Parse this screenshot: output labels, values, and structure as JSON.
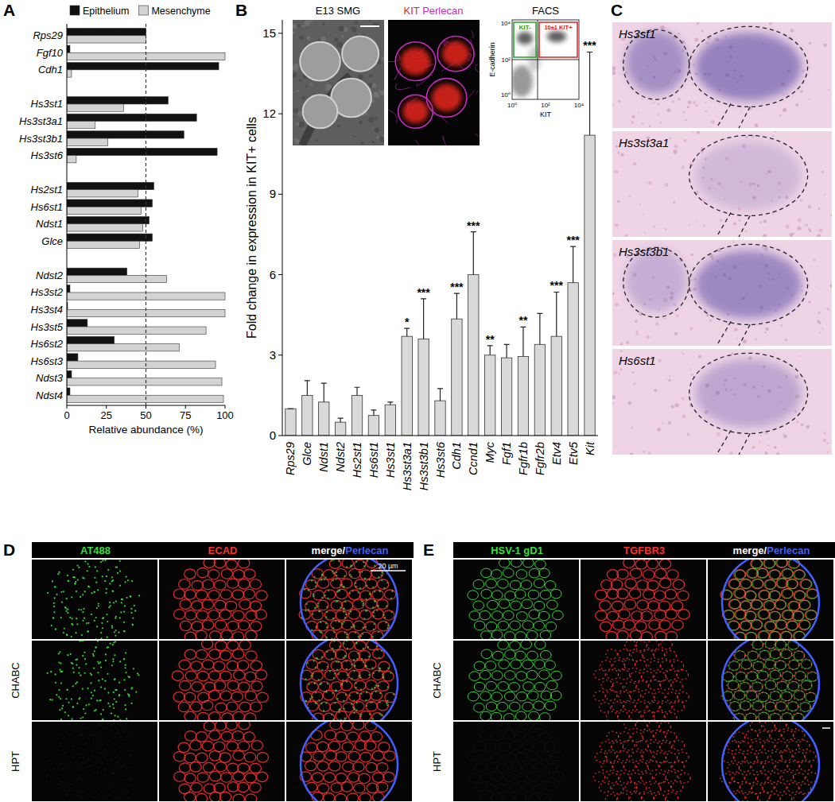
{
  "chart_data": [
    {
      "type": "bar",
      "orientation": "horizontal",
      "categories": [
        "Rps29",
        "Fgf10",
        "Cdh1",
        null,
        "Hs3st1",
        "Hs3st3a1",
        "Hs3st3b1",
        "Hs3st6",
        null,
        "Hs2st1",
        "Hs6st1",
        "Ndst1",
        "Glce",
        null,
        "Ndst2",
        "Hs3st2",
        "Hs3st4",
        "Hs3st5",
        "Hs6st2",
        "Hs6st3",
        "Ndst3",
        "Ndst4"
      ],
      "series": [
        {
          "name": "Epithelium",
          "color": "#111111",
          "values": [
            50,
            2,
            96,
            null,
            64,
            82,
            74,
            95,
            null,
            55,
            54,
            52,
            54,
            null,
            38,
            2,
            0.5,
            13,
            30,
            7,
            3,
            2
          ]
        },
        {
          "name": "Mesenchyme",
          "color": "#d3d3d3",
          "values": [
            50,
            100,
            3,
            null,
            36,
            18,
            26,
            6,
            null,
            45,
            47,
            48,
            46,
            null,
            63,
            100,
            100,
            88,
            71,
            94,
            98,
            99
          ]
        }
      ],
      "xlabel": "Relative abundance (%)",
      "xlim": [
        0,
        100
      ],
      "xticks": [
        0,
        25,
        50,
        75,
        100
      ],
      "legend": "top",
      "ref_line": 50
    },
    {
      "type": "bar",
      "categories": [
        "Rps29",
        "Glce",
        "Ndst1",
        "Ndst2",
        "Hs2st1",
        "Hs6st1",
        "Hs3st1",
        "Hs3st3a1",
        "Hs3st3b1",
        "Hs3st6",
        "Cdh1",
        "Ccnd1",
        "Myc",
        "Fgf1",
        "Fgfr1b",
        "Fgfr2b",
        "Etv4",
        "Etv5",
        "Kit"
      ],
      "values": [
        1,
        1.5,
        1.25,
        0.5,
        1.5,
        0.75,
        1.15,
        3.7,
        3.6,
        1.3,
        4.35,
        6,
        3,
        2.9,
        2.95,
        3.4,
        3.7,
        5.7,
        11.2
      ],
      "errors": [
        0,
        0.55,
        0.7,
        0.15,
        0.3,
        0.2,
        0.1,
        0.3,
        1.5,
        0.45,
        0.95,
        1.6,
        0.35,
        0.5,
        1.1,
        1.15,
        1.65,
        1.35,
        3.1
      ],
      "significance": [
        null,
        null,
        null,
        null,
        null,
        null,
        null,
        "*",
        "***",
        null,
        "***",
        "***",
        "**",
        null,
        "**",
        null,
        "***",
        "***",
        "***"
      ],
      "color": "#d9d9d9",
      "ylabel": "Fold change in expression in KIT+ cells",
      "ylim": [
        0,
        15.5
      ],
      "yticks": [
        0,
        3,
        6,
        9,
        12,
        15
      ]
    }
  ],
  "figure": {
    "panel_letters": [
      "A",
      "B",
      "C",
      "D",
      "E"
    ],
    "b_insets": {
      "smg_title": "E13 SMG",
      "stain_titles": [
        {
          "text": "KIT",
          "color": "#e8261f"
        },
        {
          "text": " Perlecan",
          "color": "#c42bbf"
        }
      ],
      "facs_title": "FACS",
      "facs_ylabel": "E-cadherin",
      "facs_xlabel": "KIT",
      "facs_ticks": [
        "10⁰",
        "10²",
        "10⁴"
      ],
      "facs_gates": [
        {
          "text": "KIT-",
          "color": "#22a022"
        },
        {
          "text": "10±1 KIT+",
          "color": "#dd2222"
        }
      ]
    },
    "c_panels": [
      "Hs3st1",
      "Hs3st3a1",
      "Hs3st3b1",
      "Hs6st1"
    ],
    "d_panel": {
      "headers": [
        [
          {
            "text": "AT488",
            "color": "#3adf3a"
          }
        ],
        [
          {
            "text": "ECAD",
            "color": "#ff3030"
          }
        ],
        [
          {
            "text": "merge/",
            "color": "#ffffff"
          },
          {
            "text": "Perlecan",
            "color": "#4060ff"
          }
        ]
      ],
      "rows": [
        null,
        "CHABC",
        "HPT"
      ],
      "scale_bar": "20 µm"
    },
    "e_panel": {
      "headers": [
        [
          {
            "text": "HSV-1 gD1",
            "color": "#3adf3a"
          }
        ],
        [
          {
            "text": "TGFBR3",
            "color": "#ff3030"
          }
        ],
        [
          {
            "text": "merge/",
            "color": "#ffffff"
          },
          {
            "text": "Perlecan",
            "color": "#4060ff"
          }
        ]
      ],
      "rows": [
        null,
        "CHABC",
        "HPT"
      ]
    }
  }
}
